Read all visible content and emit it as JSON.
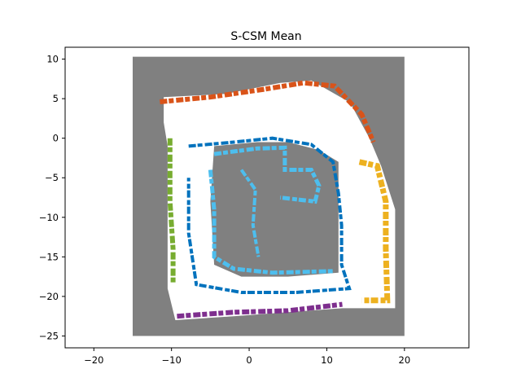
{
  "chart_data": {
    "type": "heatmap",
    "title": "S-CSM Mean",
    "xlabel": "",
    "ylabel": "",
    "xlim": [
      -23.7,
      28.3
    ],
    "ylim": [
      -26.5,
      11.5
    ],
    "xticks": [
      -20,
      -10,
      0,
      10,
      20
    ],
    "yticks": [
      10,
      5,
      0,
      -5,
      -10,
      -15,
      -20,
      -25
    ],
    "grid": false,
    "map_extent": {
      "x": [
        -15,
        20
      ],
      "y": [
        -25,
        10.3
      ]
    },
    "colors": {
      "unknown": "#808080",
      "free": "#ffffff",
      "wall_outer": "#0072bd",
      "wall_inner": "#4dbeee",
      "class_north": "#d95319",
      "class_west": "#77ac30",
      "class_south": "#7e2f8e",
      "class_east": "#edb120"
    }
  }
}
